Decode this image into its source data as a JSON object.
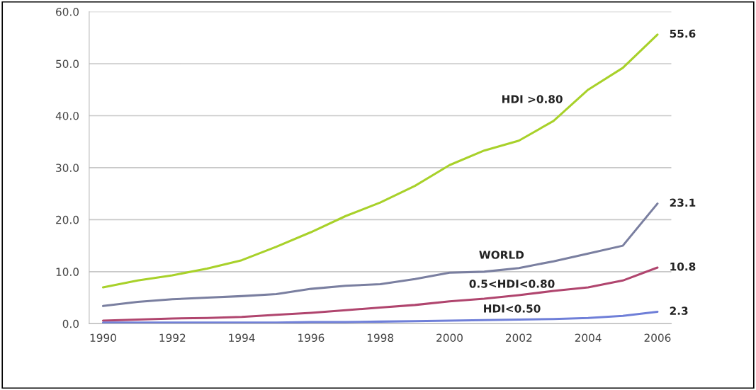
{
  "chart_data": {
    "type": "line",
    "x": [
      1990,
      1991,
      1992,
      1993,
      1994,
      1995,
      1996,
      1997,
      1998,
      1999,
      2000,
      2001,
      2002,
      2003,
      2004,
      2005,
      2006
    ],
    "series": [
      {
        "name": "HDI >0.80",
        "color": "#a8d12a",
        "values": [
          7.0,
          8.3,
          9.3,
          10.6,
          12.2,
          14.8,
          17.6,
          20.7,
          23.3,
          26.5,
          30.5,
          33.3,
          35.2,
          39.0,
          45.0,
          49.2,
          55.6
        ],
        "value_labels": [
          null,
          null,
          null,
          null,
          null,
          null,
          null,
          null,
          null,
          null,
          null,
          null,
          null,
          null,
          null,
          null,
          "55.6"
        ]
      },
      {
        "name": "WORLD",
        "color": "#7a7fa0",
        "values": [
          3.4,
          4.2,
          4.7,
          5.0,
          5.3,
          5.7,
          6.7,
          7.3,
          7.6,
          8.6,
          9.8,
          10.0,
          10.7,
          12.0,
          13.5,
          15.0,
          23.1
        ],
        "value_labels": [
          null,
          null,
          null,
          null,
          null,
          null,
          null,
          null,
          null,
          null,
          null,
          null,
          null,
          null,
          null,
          null,
          "23.1"
        ]
      },
      {
        "name": "0.5<HDI<0.80",
        "color": "#b0456e",
        "values": [
          0.6,
          0.8,
          1.0,
          1.1,
          1.3,
          1.7,
          2.1,
          2.6,
          3.1,
          3.6,
          4.3,
          4.8,
          5.5,
          6.3,
          7.0,
          8.3,
          10.8
        ],
        "value_labels": [
          null,
          null,
          null,
          null,
          null,
          null,
          null,
          null,
          null,
          null,
          null,
          null,
          null,
          null,
          null,
          null,
          "10.8"
        ]
      },
      {
        "name": "HDI<0.50",
        "color": "#6f7fd8",
        "values": [
          0.2,
          0.2,
          0.2,
          0.2,
          0.2,
          0.2,
          0.3,
          0.3,
          0.4,
          0.5,
          0.6,
          0.7,
          0.8,
          0.9,
          1.1,
          1.5,
          2.3
        ],
        "value_labels": [
          null,
          null,
          null,
          null,
          null,
          null,
          null,
          null,
          null,
          null,
          null,
          null,
          null,
          null,
          null,
          null,
          "2.3"
        ]
      }
    ],
    "xlim": [
      1989.6,
      2006.4
    ],
    "xticks": [
      1990,
      1992,
      1994,
      1996,
      1998,
      2000,
      2002,
      2004,
      2006
    ],
    "ylim": [
      0,
      60
    ],
    "yticks": [
      {
        "value": 0,
        "label": "0.0"
      },
      {
        "value": 10,
        "label": "10.0"
      },
      {
        "value": 20,
        "label": "20.0"
      },
      {
        "value": 30,
        "label": "30.0"
      },
      {
        "value": 40,
        "label": "40.0"
      },
      {
        "value": 50,
        "label": "50.0"
      },
      {
        "value": 60,
        "label": "60.0"
      }
    ],
    "grid": "y",
    "legend": false,
    "marker": "none",
    "line_style": "solid"
  }
}
